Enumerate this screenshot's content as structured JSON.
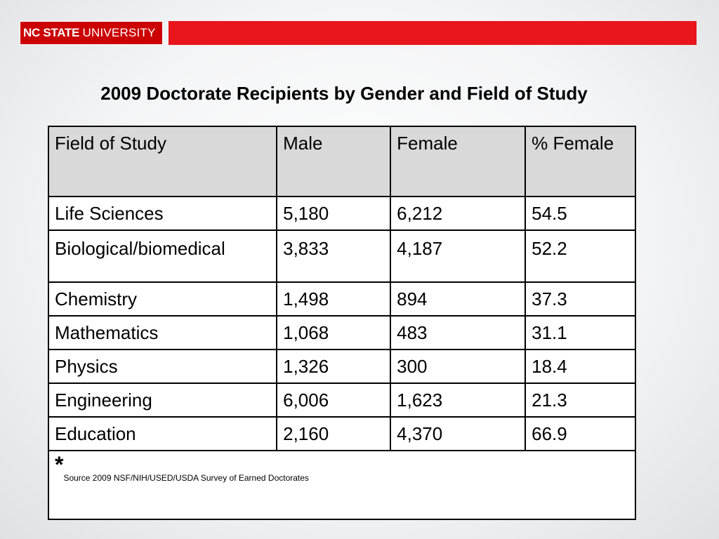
{
  "header": {
    "logo_bold": "NC STATE",
    "logo_light": "UNIVERSITY",
    "brand_color": "#cc0000",
    "band_color": "#e8151c"
  },
  "title": "2009 Doctorate Recipients by Gender and Field of Study",
  "table": {
    "columns": [
      "Field of Study",
      "Male",
      "Female",
      "% Female"
    ],
    "rows": [
      [
        "Life Sciences",
        "5,180",
        "6,212",
        "54.5"
      ],
      [
        "Biological/biomedical",
        "3,833",
        "4,187",
        "52.2"
      ],
      [
        "Chemistry",
        "1,498",
        "894",
        "37.3"
      ],
      [
        "Mathematics",
        "1,068",
        "483",
        "31.1"
      ],
      [
        "Physics",
        "1,326",
        "300",
        "18.4"
      ],
      [
        "Engineering",
        "6,006",
        "1,623",
        "21.3"
      ],
      [
        "Education",
        "2,160",
        "4,370",
        "66.9"
      ]
    ],
    "footnote_marker": "*",
    "footnote": "Source 2009 NSF/NIH/USED/USDA  Survey of Earned Doctorates"
  }
}
